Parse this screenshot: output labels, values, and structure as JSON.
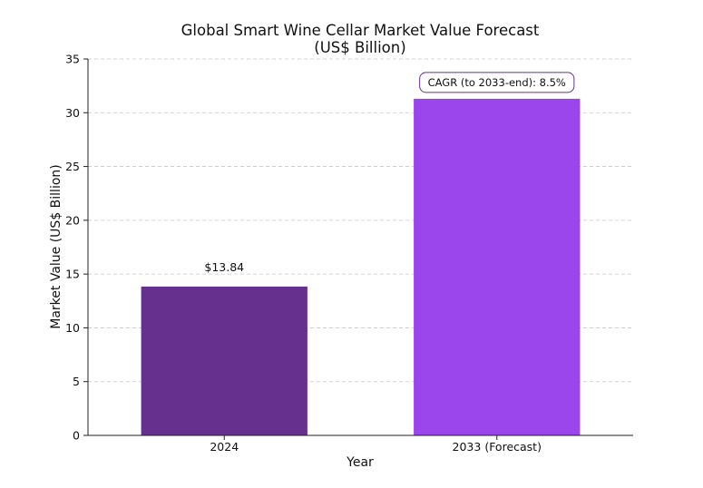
{
  "chart_data": {
    "type": "bar",
    "title": "Global Smart Wine Cellar Market Value Forecast",
    "subtitle": "(US$ Billion)",
    "xlabel": "Year",
    "ylabel": "Market Value (US$ Billion)",
    "categories": [
      "2024",
      "2033 (Forecast)"
    ],
    "values": [
      13.84,
      31.3
    ],
    "data_labels": [
      "$13.84",
      ""
    ],
    "ylim": [
      0,
      35
    ],
    "yticks": [
      0,
      5,
      10,
      15,
      20,
      25,
      30,
      35
    ],
    "grid": true,
    "bar_colors": [
      "#66308e",
      "#9b45ed"
    ],
    "annotation": {
      "text": "CAGR (to 2033-end): 8.5%",
      "border_color": "#66308e"
    }
  }
}
